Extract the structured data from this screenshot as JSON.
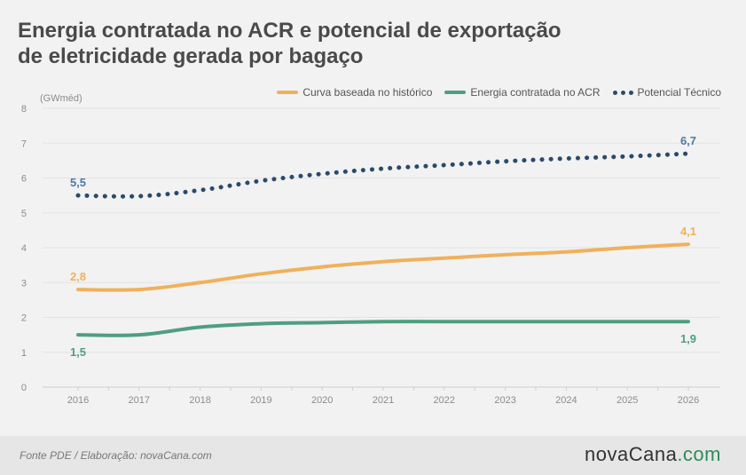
{
  "title_line1": "Energia contratada no ACR e potencial de exportação",
  "title_line2": "de eletricidade gerada por bagaço",
  "unit_label": "(GWméd)",
  "source": "Fonte PDE / Elaboração: novaCana.com",
  "brand": {
    "name": "novaCana",
    "tld": ".com"
  },
  "legend": {
    "historico": "Curva baseada no histórico",
    "acr": "Energia contratada no ACR",
    "potencial": "Potencial Técnico"
  },
  "colors": {
    "historico": "#efb15c",
    "acr": "#4f9e80",
    "potencial": "#2b4a6b",
    "potencial_label": "#4e7aa3",
    "grid": "#e3e3e3",
    "axis_text": "#8c8c8c"
  },
  "chart_data": {
    "type": "line",
    "title": "Energia contratada no ACR e potencial de exportação de eletricidade gerada por bagaço",
    "xlabel": "",
    "ylabel": "(GWméd)",
    "ylim": [
      0,
      8
    ],
    "yticks": [
      0,
      1,
      2,
      3,
      4,
      5,
      6,
      7,
      8
    ],
    "grid": true,
    "legend_position": "top-right",
    "categories": [
      "2016",
      "2017",
      "2018",
      "2019",
      "2020",
      "2021",
      "2022",
      "2023",
      "2024",
      "2025",
      "2026"
    ],
    "series": [
      {
        "key": "historico",
        "name": "Curva baseada no histórico",
        "style": "solid",
        "values": [
          2.8,
          2.8,
          3.0,
          3.25,
          3.45,
          3.6,
          3.7,
          3.8,
          3.88,
          4.0,
          4.1
        ]
      },
      {
        "key": "acr",
        "name": "Energia contratada no ACR",
        "style": "solid",
        "values": [
          1.5,
          1.5,
          1.72,
          1.82,
          1.85,
          1.88,
          1.88,
          1.88,
          1.88,
          1.88,
          1.88
        ]
      },
      {
        "key": "potencial",
        "name": "Potencial Técnico",
        "style": "dotted",
        "values": [
          5.5,
          5.48,
          5.65,
          5.92,
          6.12,
          6.27,
          6.37,
          6.48,
          6.56,
          6.62,
          6.7
        ]
      }
    ],
    "annotations": [
      {
        "series": "potencial",
        "index": 0,
        "text": "5,5",
        "position": "above"
      },
      {
        "series": "potencial",
        "index": 10,
        "text": "6,7",
        "position": "above"
      },
      {
        "series": "historico",
        "index": 0,
        "text": "2,8",
        "position": "above"
      },
      {
        "series": "historico",
        "index": 10,
        "text": "4,1",
        "position": "above"
      },
      {
        "series": "acr",
        "index": 0,
        "text": "1,5",
        "position": "below"
      },
      {
        "series": "acr",
        "index": 10,
        "text": "1,9",
        "position": "below"
      }
    ]
  }
}
